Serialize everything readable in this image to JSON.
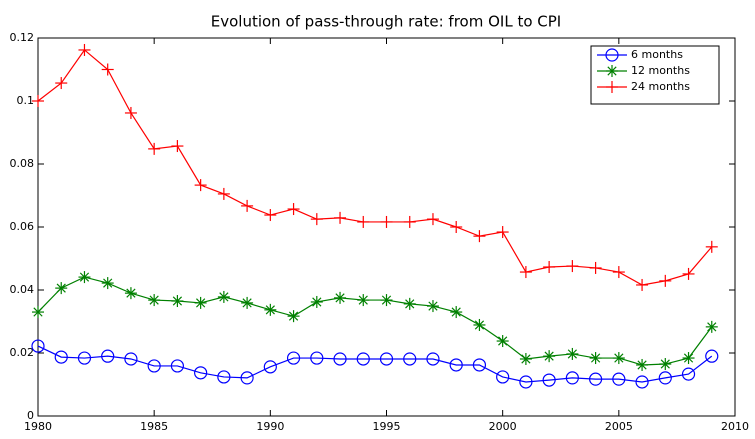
{
  "chart_data": {
    "type": "line",
    "title": "Evolution of pass-through rate: from OIL to CPI",
    "x": [
      1980,
      1981,
      1982,
      1983,
      1984,
      1985,
      1986,
      1987,
      1988,
      1989,
      1990,
      1991,
      1992,
      1993,
      1994,
      1995,
      1996,
      1997,
      1998,
      1999,
      2000,
      2001,
      2002,
      2003,
      2004,
      2005,
      2006,
      2007,
      2008,
      2009
    ],
    "series": [
      {
        "name": "6 months",
        "color": "#0000ff",
        "marker": "o",
        "values": [
          0.0222,
          0.0187,
          0.0184,
          0.019,
          0.0181,
          0.0159,
          0.0159,
          0.0137,
          0.0124,
          0.0121,
          0.0156,
          0.0184,
          0.0184,
          0.0181,
          0.0181,
          0.0181,
          0.0181,
          0.0181,
          0.0162,
          0.0162,
          0.0124,
          0.0108,
          0.0114,
          0.0121,
          0.0117,
          0.0117,
          0.0108,
          0.0121,
          0.0133,
          0.019
        ]
      },
      {
        "name": "12 months",
        "color": "#008000",
        "marker": "*",
        "values": [
          0.033,
          0.0406,
          0.0441,
          0.0422,
          0.039,
          0.0368,
          0.0365,
          0.0359,
          0.0378,
          0.0359,
          0.0337,
          0.0317,
          0.0362,
          0.0375,
          0.0368,
          0.0368,
          0.0356,
          0.0349,
          0.033,
          0.0289,
          0.0238,
          0.0181,
          0.019,
          0.0197,
          0.0184,
          0.0184,
          0.0162,
          0.0165,
          0.0184,
          0.0283
        ]
      },
      {
        "name": "24 months",
        "color": "#ff0000",
        "marker": "+",
        "values": [
          0.1,
          0.1057,
          0.1162,
          0.11,
          0.0962,
          0.0848,
          0.0857,
          0.0733,
          0.0705,
          0.0667,
          0.0638,
          0.0657,
          0.0625,
          0.0629,
          0.0616,
          0.0616,
          0.0616,
          0.0625,
          0.06,
          0.0571,
          0.0584,
          0.0457,
          0.0473,
          0.0476,
          0.047,
          0.0457,
          0.0416,
          0.0429,
          0.0451,
          0.0537
        ]
      }
    ],
    "xlim": [
      1980,
      2010
    ],
    "xticks": [
      1980,
      1985,
      1990,
      1995,
      2000,
      2005,
      2010
    ],
    "ylim": [
      0,
      0.12
    ],
    "yticks": [
      0,
      0.02,
      0.04,
      0.06,
      0.08,
      0.1,
      0.12
    ],
    "legend": "northeast"
  }
}
